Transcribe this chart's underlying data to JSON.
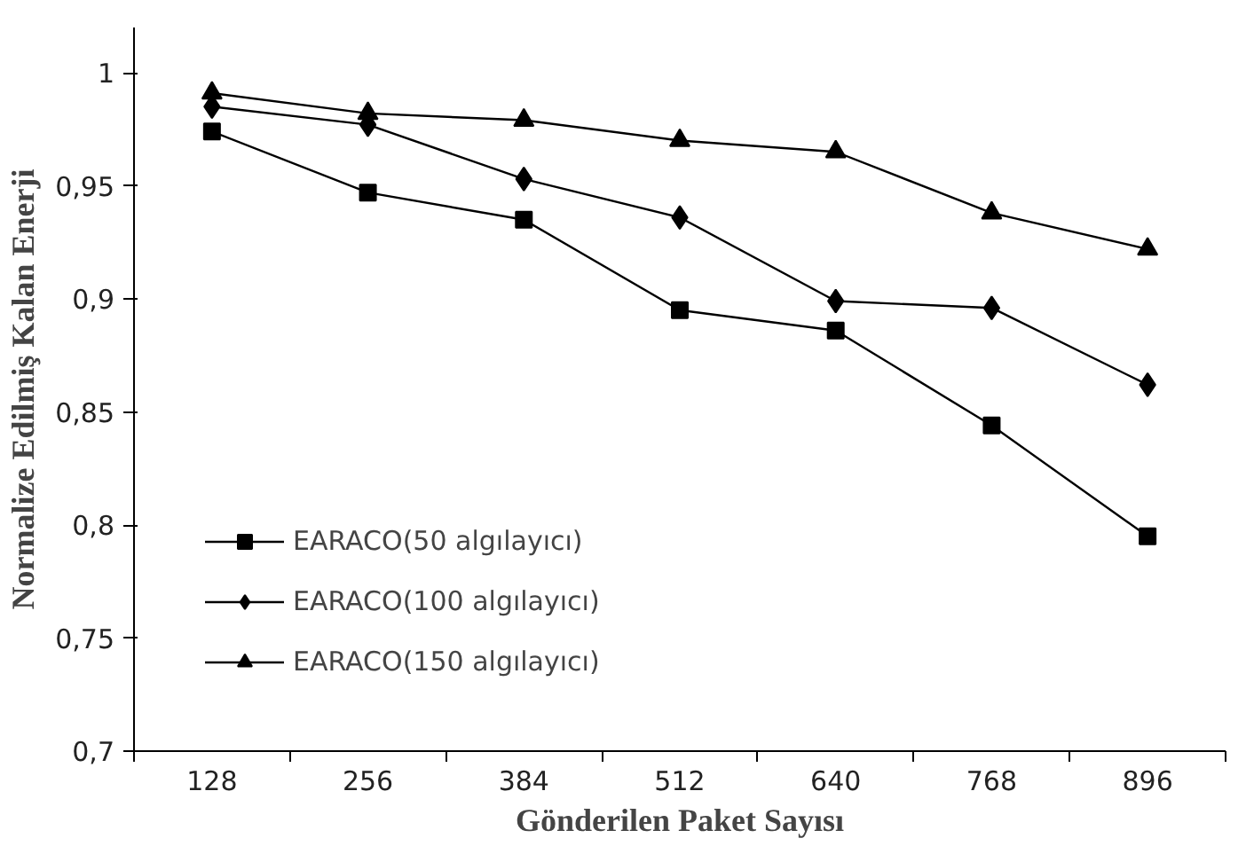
{
  "chart_data": {
    "type": "line",
    "xlabel": "Gönderilen Paket Sayısı",
    "ylabel": "Normalize Edilmiş Kalan Enerji",
    "categories": [
      "128",
      "256",
      "384",
      "512",
      "640",
      "768",
      "896"
    ],
    "ylim": [
      0.7,
      1.02
    ],
    "yticks": [
      {
        "value": 0.7,
        "label": "0,7"
      },
      {
        "value": 0.75,
        "label": "0,75"
      },
      {
        "value": 0.8,
        "label": "0,8"
      },
      {
        "value": 0.85,
        "label": "0,85"
      },
      {
        "value": 0.9,
        "label": "0,9"
      },
      {
        "value": 0.95,
        "label": "0,95"
      },
      {
        "value": 1,
        "label": "1"
      }
    ],
    "grid": false,
    "legend": "bottom left",
    "line_style": "solid",
    "series": [
      {
        "name": "EARACO(50 algılayıcı)",
        "color": "#000000",
        "marker": "square",
        "values": [
          0.974,
          0.947,
          0.935,
          0.895,
          0.886,
          0.844,
          0.795
        ]
      },
      {
        "name": "EARACO(100 algılayıcı)",
        "color": "#000000",
        "marker": "diamond",
        "values": [
          0.985,
          0.977,
          0.953,
          0.936,
          0.899,
          0.896,
          0.862
        ]
      },
      {
        "name": "EARACO(150 algılayıcı)",
        "color": "#000000",
        "marker": "triangle",
        "values": [
          0.991,
          0.982,
          0.979,
          0.97,
          0.965,
          0.938,
          0.922
        ]
      }
    ]
  }
}
